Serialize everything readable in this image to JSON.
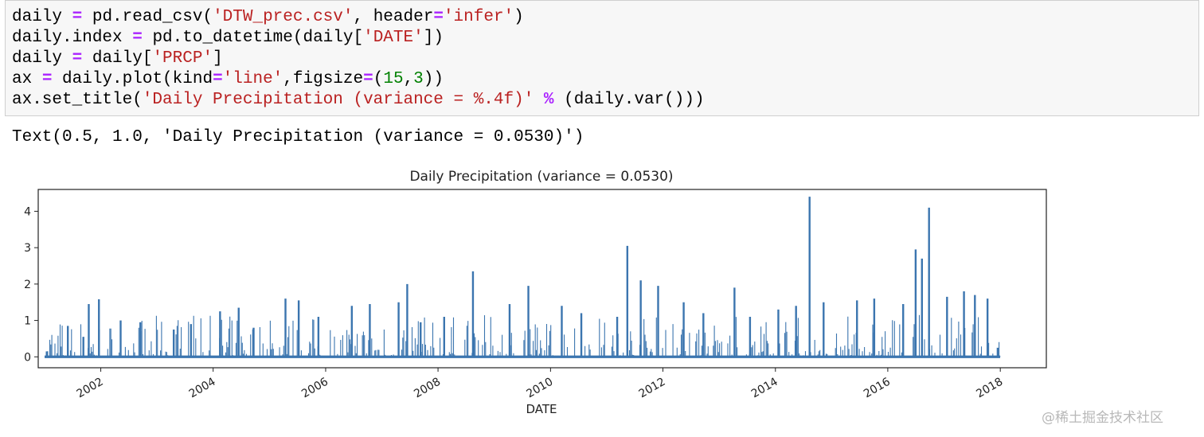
{
  "code_cell": {
    "lines": [
      [
        [
          "pl",
          "daily "
        ],
        [
          "op",
          "="
        ],
        [
          "pl",
          " pd.read_csv("
        ],
        [
          "str",
          "'DTW_prec.csv'"
        ],
        [
          "pl",
          ", header"
        ],
        [
          "op",
          "="
        ],
        [
          "str",
          "'infer'"
        ],
        [
          "pl",
          ")"
        ]
      ],
      [
        [
          "pl",
          "daily.index "
        ],
        [
          "op",
          "="
        ],
        [
          "pl",
          " pd.to_datetime(daily["
        ],
        [
          "str",
          "'DATE'"
        ],
        [
          "pl",
          "])"
        ]
      ],
      [
        [
          "pl",
          "daily "
        ],
        [
          "op",
          "="
        ],
        [
          "pl",
          " daily["
        ],
        [
          "str",
          "'PRCP'"
        ],
        [
          "pl",
          "]"
        ]
      ],
      [
        [
          "pl",
          "ax "
        ],
        [
          "op",
          "="
        ],
        [
          "pl",
          " daily.plot(kind"
        ],
        [
          "op",
          "="
        ],
        [
          "str",
          "'line'"
        ],
        [
          "pl",
          ",figsize"
        ],
        [
          "op",
          "="
        ],
        [
          "pl",
          "("
        ],
        [
          "num",
          "15"
        ],
        [
          "pl",
          ","
        ],
        [
          "num",
          "3"
        ],
        [
          "pl",
          "))"
        ]
      ],
      [
        [
          "pl",
          "ax.set_title("
        ],
        [
          "str",
          "'Daily Precipitation (variance = %.4f)'"
        ],
        [
          "pl",
          " "
        ],
        [
          "op",
          "%"
        ],
        [
          "pl",
          " (daily.var()))"
        ]
      ]
    ]
  },
  "output_text": "Text(0.5, 1.0, 'Daily Precipitation (variance = 0.0530)')",
  "colors": {
    "line": "#3b75af",
    "string": "#ba2121",
    "operator": "#aa22ff",
    "number": "#008000"
  },
  "chart_data": {
    "type": "line",
    "title": "Daily Precipitation (variance = 0.0530)",
    "xlabel": "DATE",
    "ylabel": "",
    "ylim": [
      -0.3,
      4.6
    ],
    "yticks": [
      0,
      1,
      2,
      3,
      4
    ],
    "xticks": [
      "2002",
      "2004",
      "2006",
      "2008",
      "2010",
      "2012",
      "2014",
      "2016",
      "2018"
    ],
    "xrange": [
      "2001-01-01",
      "2017-12-31"
    ],
    "grid": false,
    "series": [
      {
        "x": [
          "2001-01-15",
          "2001-06-01",
          "2001-09-10",
          "2001-10-15",
          "2001-12-20",
          "2002-05-10",
          "2002-09-15",
          "2003-04-20",
          "2003-08-10",
          "2004-02-15",
          "2004-06-15",
          "2004-09-20",
          "2005-04-15",
          "2005-07-10",
          "2005-11-15",
          "2006-06-20",
          "2006-10-15",
          "2007-04-20",
          "2007-06-15",
          "2007-09-10",
          "2008-02-10",
          "2008-08-15",
          "2009-04-10",
          "2009-08-10",
          "2010-03-15",
          "2010-07-20",
          "2011-03-10",
          "2011-05-15",
          "2011-08-10",
          "2011-12-01",
          "2012-05-15",
          "2012-09-20",
          "2013-04-10",
          "2013-07-20",
          "2014-01-20",
          "2014-05-15",
          "2014-08-11",
          "2014-11-10",
          "2015-06-15",
          "2015-10-05",
          "2016-04-10",
          "2016-06-30",
          "2016-08-10",
          "2016-09-25",
          "2017-01-20",
          "2017-05-10",
          "2017-07-20",
          "2017-10-10",
          "2017-12-15"
        ],
        "y": [
          0.15,
          0.85,
          0.55,
          1.45,
          1.58,
          1.0,
          0.95,
          0.75,
          0.9,
          1.25,
          1.35,
          0.8,
          1.6,
          1.55,
          1.1,
          1.4,
          1.45,
          1.5,
          2.0,
          0.95,
          1.1,
          2.35,
          1.45,
          1.95,
          1.4,
          1.2,
          1.1,
          3.05,
          2.1,
          1.95,
          1.5,
          1.2,
          1.9,
          1.1,
          1.3,
          1.4,
          4.4,
          1.5,
          1.55,
          1.6,
          1.45,
          2.95,
          2.7,
          4.1,
          1.65,
          1.8,
          1.7,
          1.6,
          0.25
        ]
      }
    ]
  },
  "watermark": "@稀土掘金技术社区"
}
